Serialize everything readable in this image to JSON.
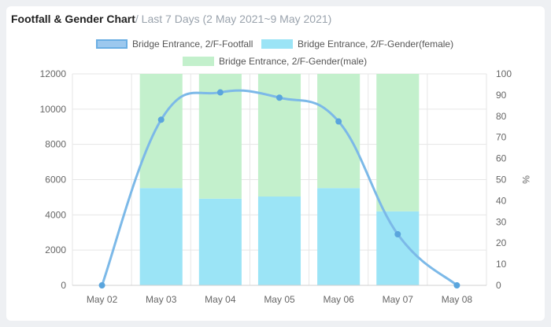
{
  "header": {
    "title": "Footfall & Gender Chart",
    "subtitle": "/ Last 7 Days (2 May 2021~9 May 2021)"
  },
  "chart_data": {
    "type": "bar",
    "categories": [
      "May 02",
      "May 03",
      "May 04",
      "May 05",
      "May 06",
      "May 07",
      "May 08"
    ],
    "series": [
      {
        "name": "Bridge Entrance, 2/F-Footfall",
        "type": "line",
        "axis": "left",
        "values": [
          0,
          9400,
          10950,
          10650,
          9300,
          2900,
          0
        ],
        "color": "#7cb9e8"
      },
      {
        "name": "Bridge Entrance, 2/F-Gender(female)",
        "type": "bar",
        "axis": "right",
        "stack": "gender",
        "values": [
          0,
          46,
          41,
          42,
          46,
          35,
          0
        ],
        "color": "#9be4f6"
      },
      {
        "name": "Bridge Entrance, 2/F-Gender(male)",
        "type": "bar",
        "axis": "right",
        "stack": "gender",
        "values": [
          0,
          54,
          59,
          58,
          54,
          65,
          0
        ],
        "color": "#c3f0cc"
      }
    ],
    "y_left": {
      "min": 0,
      "max": 12000,
      "ticks": [
        0,
        2000,
        4000,
        6000,
        8000,
        10000,
        12000
      ]
    },
    "y_right": {
      "min": 0,
      "max": 100,
      "label": "%",
      "ticks": [
        0,
        10,
        20,
        30,
        40,
        50,
        60,
        70,
        80,
        90,
        100
      ]
    },
    "grid": true,
    "legend_position": "top"
  }
}
